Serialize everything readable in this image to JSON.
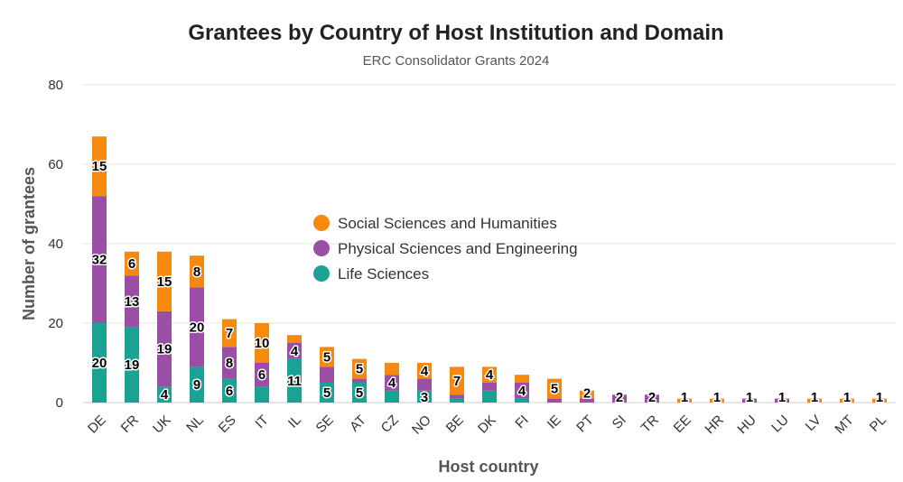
{
  "chart_data": {
    "type": "bar",
    "stacked": true,
    "title": "Grantees by Country of Host Institution and Domain",
    "subtitle": "ERC Consolidator Grants 2024",
    "xlabel": "Host country",
    "ylabel": "Number of grantees",
    "ylim": [
      0,
      80
    ],
    "yticks": [
      0,
      20,
      40,
      60,
      80
    ],
    "grid": true,
    "legend_position": "center",
    "categories": [
      "DE",
      "FR",
      "UK",
      "NL",
      "ES",
      "IT",
      "IL",
      "SE",
      "AT",
      "CZ",
      "NO",
      "BE",
      "DK",
      "FI",
      "IE",
      "PT",
      "SI",
      "TR",
      "EE",
      "HR",
      "HU",
      "LU",
      "LV",
      "MT",
      "PL"
    ],
    "series": [
      {
        "name": "Life Sciences",
        "color": "#1aa393",
        "values": [
          20,
          19,
          4,
          9,
          6,
          4,
          11,
          5,
          5,
          3,
          3,
          1,
          3,
          1,
          0,
          0,
          0,
          0,
          0,
          0,
          0,
          0,
          0,
          0,
          0
        ]
      },
      {
        "name": "Physical Sciences and Engineering",
        "color": "#9b4ea6",
        "values": [
          32,
          13,
          19,
          20,
          8,
          6,
          4,
          4,
          1,
          4,
          3,
          1,
          2,
          4,
          1,
          1,
          2,
          2,
          0,
          0,
          1,
          1,
          0,
          0,
          0
        ]
      },
      {
        "name": "Social Sciences and Humanities",
        "color": "#f7890f",
        "values": [
          15,
          6,
          15,
          8,
          7,
          10,
          2,
          5,
          5,
          3,
          4,
          7,
          4,
          2,
          5,
          2,
          0,
          0,
          1,
          1,
          0,
          0,
          1,
          1,
          1
        ]
      }
    ],
    "data_labels": [
      {
        "category": "DE",
        "series": 0,
        "text": "20"
      },
      {
        "category": "DE",
        "series": 1,
        "text": "32"
      },
      {
        "category": "DE",
        "series": 2,
        "text": "15"
      },
      {
        "category": "FR",
        "series": 0,
        "text": "19"
      },
      {
        "category": "FR",
        "series": 1,
        "text": "13"
      },
      {
        "category": "FR",
        "series": 2,
        "text": "6"
      },
      {
        "category": "UK",
        "series": 0,
        "text": "4"
      },
      {
        "category": "UK",
        "series": 1,
        "text": "19"
      },
      {
        "category": "UK",
        "series": 2,
        "text": "15"
      },
      {
        "category": "NL",
        "series": 0,
        "text": "9"
      },
      {
        "category": "NL",
        "series": 1,
        "text": "20"
      },
      {
        "category": "NL",
        "series": 2,
        "text": "8"
      },
      {
        "category": "ES",
        "series": 0,
        "text": "6"
      },
      {
        "category": "ES",
        "series": 1,
        "text": "8"
      },
      {
        "category": "ES",
        "series": 2,
        "text": "7"
      },
      {
        "category": "IT",
        "series": 1,
        "text": "6"
      },
      {
        "category": "IT",
        "series": 2,
        "text": "10"
      },
      {
        "category": "IL",
        "series": 0,
        "text": "11"
      },
      {
        "category": "IL",
        "series": 1,
        "text": "4"
      },
      {
        "category": "SE",
        "series": 0,
        "text": "5"
      },
      {
        "category": "SE",
        "series": 2,
        "text": "5"
      },
      {
        "category": "AT",
        "series": 0,
        "text": "5"
      },
      {
        "category": "AT",
        "series": 2,
        "text": "5"
      },
      {
        "category": "CZ",
        "series": 1,
        "text": "4"
      },
      {
        "category": "NO",
        "series": 0,
        "text": "3"
      },
      {
        "category": "NO",
        "series": 2,
        "text": "4"
      },
      {
        "category": "BE",
        "series": 2,
        "text": "7"
      },
      {
        "category": "DK",
        "series": 2,
        "text": "4"
      },
      {
        "category": "FI",
        "series": 1,
        "text": "4"
      },
      {
        "category": "IE",
        "series": 2,
        "text": "5"
      },
      {
        "category": "PT",
        "series": 2,
        "text": "2"
      },
      {
        "category": "SI",
        "series": 1,
        "text": "2"
      },
      {
        "category": "TR",
        "series": 1,
        "text": "2"
      },
      {
        "category": "EE",
        "series": 2,
        "text": "1"
      },
      {
        "category": "HR",
        "series": 2,
        "text": "1"
      },
      {
        "category": "HU",
        "series": 1,
        "text": "1"
      },
      {
        "category": "LU",
        "series": 1,
        "text": "1"
      },
      {
        "category": "LV",
        "series": 2,
        "text": "1"
      },
      {
        "category": "MT",
        "series": 2,
        "text": "1"
      },
      {
        "category": "PL",
        "series": 2,
        "text": "1"
      }
    ]
  }
}
